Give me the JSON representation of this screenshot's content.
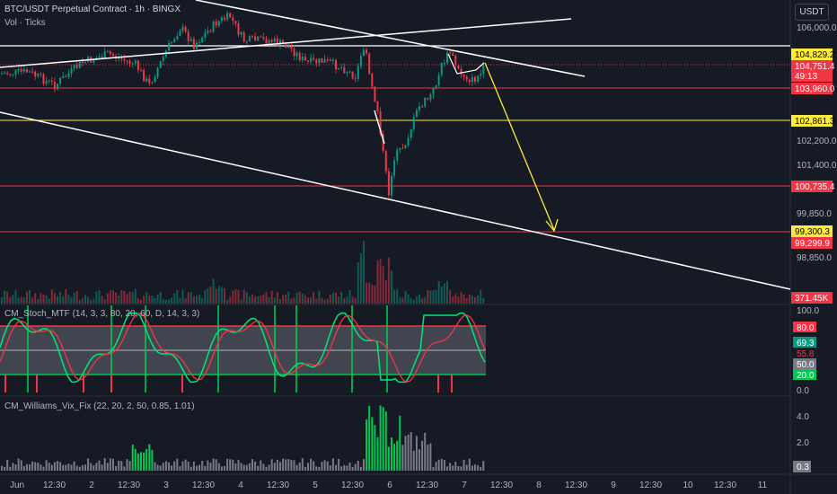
{
  "header": {
    "title": "BTC/USDT Perpetual Contract · 1h · BINGX",
    "subtitle": "Vol · Ticks",
    "currency_button": "USDT"
  },
  "price_axis": {
    "ticks": [
      "106,000.0",
      "102,200.0",
      "101,400.0",
      "99,850.0",
      "98,850.0"
    ],
    "tags": [
      {
        "label": "104,829.2",
        "bg": "#ffeb3b",
        "fg": "#000000"
      },
      {
        "label": "104,751.4",
        "bg": "#f23645",
        "fg": "#ffffff"
      },
      {
        "label": "49:13",
        "bg": "#f23645",
        "fg": "#ffffff"
      },
      {
        "label": "103,960.0",
        "bg": "#f23645",
        "fg": "#ffffff"
      },
      {
        "label": "102,861.3",
        "bg": "#ffeb3b",
        "fg": "#000000"
      },
      {
        "label": "100,735.4",
        "bg": "#f23645",
        "fg": "#ffffff"
      },
      {
        "label": "99,300.3",
        "bg": "#ffeb3b",
        "fg": "#000000"
      },
      {
        "label": "99,299.9",
        "bg": "#f23645",
        "fg": "#ffffff"
      },
      {
        "label": "371.45K",
        "bg": "#f23645",
        "fg": "#ffffff"
      }
    ]
  },
  "stoch": {
    "label": "CM_Stoch_MTF (14, 3, 3, 80, 20, 60, D, 14, 3, 3)",
    "axis_ticks": [
      "100.0",
      "0.0"
    ],
    "tags": [
      {
        "label": "80.0",
        "bg": "#f23645",
        "fg": "#ffffff"
      },
      {
        "label": "69.3",
        "bg": "#089981",
        "fg": "#ffffff"
      },
      {
        "label": "55.8",
        "bg": "#161a25",
        "fg": "#f23645"
      },
      {
        "label": "50.0",
        "bg": "#787b86",
        "fg": "#ffffff"
      },
      {
        "label": "20.0",
        "bg": "#00c853",
        "fg": "#ffffff"
      }
    ]
  },
  "vix": {
    "label": "CM_Williams_Vix_Fix (22, 20, 2, 50, 0.85, 1.01)",
    "axis_ticks": [
      "4.0",
      "2.0"
    ],
    "tag": "0.3"
  },
  "time_axis": [
    "Jun",
    "12:30",
    "2",
    "12:30",
    "3",
    "12:30",
    "4",
    "12:30",
    "5",
    "12:30",
    "6",
    "12:30",
    "7",
    "12:30",
    "8",
    "12:30",
    "9",
    "12:30",
    "10",
    "12:30",
    "11"
  ],
  "colors": {
    "up": "#089981",
    "down": "#f23645",
    "hline_red": "#f23645",
    "hline_yellow": "#ffeb3b",
    "trend": "#ffffff",
    "arrow": "#ffeb3b"
  }
}
